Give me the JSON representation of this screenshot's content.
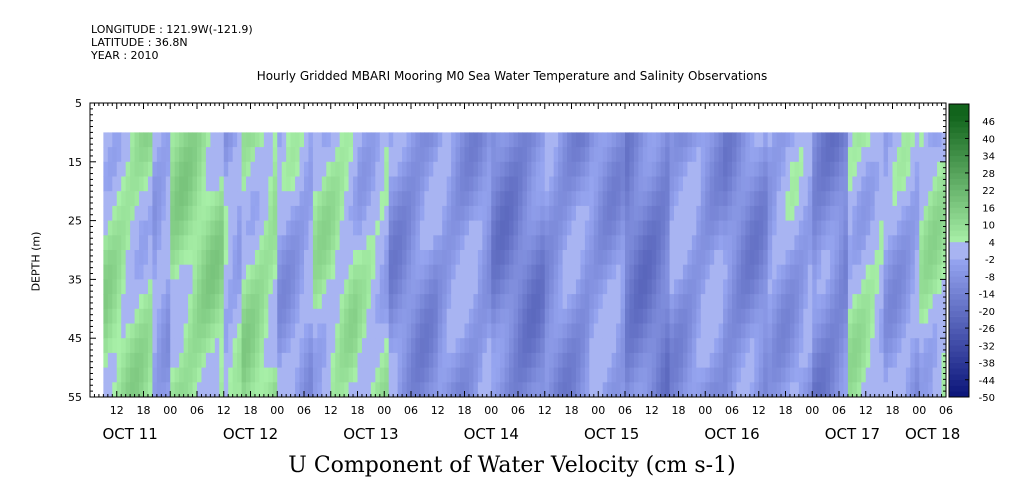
{
  "header": {
    "longitude": "LONGITUDE : 121.9W(-121.9)",
    "latitude": "LATITUDE : 36.8N",
    "year": "YEAR : 2010"
  },
  "title": "Hourly Gridded MBARI Mooring M0 Sea Water Temperature and Salinity Observations",
  "chart_data": {
    "type": "heatmap",
    "title": "Hourly Gridded MBARI Mooring M0 Sea Water Temperature and Salinity Observations",
    "variable_title": "U Component of Water Velocity (cm s-1)",
    "ylabel": "DEPTH (m)",
    "y_range": [
      5,
      55
    ],
    "y_ticks": [
      "5",
      "15",
      "25",
      "35",
      "45",
      "55"
    ],
    "y_inverted": true,
    "data_depth_range": [
      10,
      55
    ],
    "x_range_hours": [
      -12,
      180
    ],
    "data_x_range_hours": [
      -9,
      180
    ],
    "x_hour_ticks": [
      {
        "h": -6,
        "label": "12"
      },
      {
        "h": 0,
        "label": "18"
      },
      {
        "h": 6,
        "label": "00"
      },
      {
        "h": 12,
        "label": "06"
      },
      {
        "h": 18,
        "label": "12"
      },
      {
        "h": 24,
        "label": "18"
      },
      {
        "h": 30,
        "label": "00"
      },
      {
        "h": 36,
        "label": "06"
      },
      {
        "h": 42,
        "label": "12"
      },
      {
        "h": 48,
        "label": "18"
      },
      {
        "h": 54,
        "label": "00"
      },
      {
        "h": 60,
        "label": "06"
      },
      {
        "h": 66,
        "label": "12"
      },
      {
        "h": 72,
        "label": "18"
      },
      {
        "h": 78,
        "label": "00"
      },
      {
        "h": 84,
        "label": "06"
      },
      {
        "h": 90,
        "label": "12"
      },
      {
        "h": 96,
        "label": "18"
      },
      {
        "h": 102,
        "label": "00"
      },
      {
        "h": 108,
        "label": "06"
      },
      {
        "h": 114,
        "label": "12"
      },
      {
        "h": 120,
        "label": "18"
      },
      {
        "h": 126,
        "label": "00"
      },
      {
        "h": 132,
        "label": "06"
      },
      {
        "h": 138,
        "label": "12"
      },
      {
        "h": 144,
        "label": "18"
      },
      {
        "h": 150,
        "label": "00"
      },
      {
        "h": 156,
        "label": "06"
      },
      {
        "h": 162,
        "label": "12"
      },
      {
        "h": 168,
        "label": "18"
      },
      {
        "h": 174,
        "label": "00"
      },
      {
        "h": 180,
        "label": "06"
      }
    ],
    "x_day_labels": [
      {
        "h": -3,
        "label": "OCT 11"
      },
      {
        "h": 24,
        "label": "OCT 12"
      },
      {
        "h": 51,
        "label": "OCT 13"
      },
      {
        "h": 78,
        "label": "OCT 14"
      },
      {
        "h": 105,
        "label": "OCT 15"
      },
      {
        "h": 132,
        "label": "OCT 16"
      },
      {
        "h": 159,
        "label": "OCT 17"
      },
      {
        "h": 177,
        "label": "OCT 18"
      }
    ],
    "colorbar": {
      "levels": [
        -50,
        -44,
        -38,
        -32,
        -26,
        -20,
        -14,
        -8,
        -2,
        4,
        10,
        16,
        22,
        28,
        34,
        40,
        46
      ],
      "labels": [
        "46",
        "40",
        "34",
        "28",
        "22",
        "16",
        "10",
        "4",
        "-2",
        "-8",
        "-14",
        "-20",
        "-26",
        "-32",
        "-38",
        "-44",
        "-50"
      ],
      "min": -50,
      "max": 52
    },
    "pattern_segments_hours": [
      {
        "start": -9,
        "end": 2,
        "value": 6
      },
      {
        "start": 2,
        "end": 6,
        "value": -2
      },
      {
        "start": 6,
        "end": 18,
        "value": 8
      },
      {
        "start": 18,
        "end": 22,
        "value": -1
      },
      {
        "start": 22,
        "end": 30,
        "value": 7
      },
      {
        "start": 30,
        "end": 38,
        "value": -3
      },
      {
        "start": 38,
        "end": 48,
        "value": 4
      },
      {
        "start": 48,
        "end": 55,
        "value": 2
      },
      {
        "start": 55,
        "end": 66,
        "value": -8
      },
      {
        "start": 66,
        "end": 78,
        "value": -6
      },
      {
        "start": 78,
        "end": 90,
        "value": -12
      },
      {
        "start": 90,
        "end": 100,
        "value": -8
      },
      {
        "start": 100,
        "end": 108,
        "value": -6
      },
      {
        "start": 108,
        "end": 118,
        "value": -13
      },
      {
        "start": 118,
        "end": 130,
        "value": -6
      },
      {
        "start": 130,
        "end": 140,
        "value": -9
      },
      {
        "start": 140,
        "end": 150,
        "value": -4
      },
      {
        "start": 150,
        "end": 158,
        "value": -11
      },
      {
        "start": 158,
        "end": 166,
        "value": 3
      },
      {
        "start": 166,
        "end": 174,
        "value": -3
      },
      {
        "start": 174,
        "end": 180,
        "value": 4
      }
    ]
  }
}
